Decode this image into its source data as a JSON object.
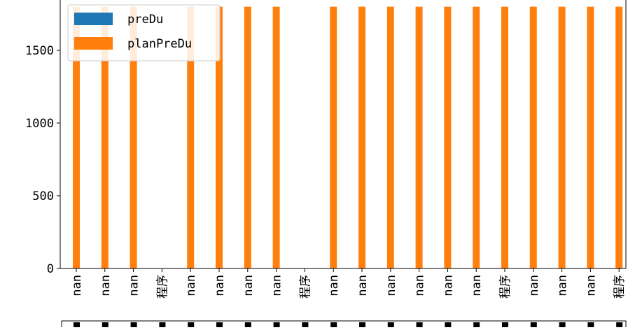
{
  "chart_data": {
    "type": "bar",
    "categories": [
      "nan",
      "nan",
      "nan",
      "程序",
      "nan",
      "nan",
      "nan",
      "nan",
      "程序",
      "nan",
      "nan",
      "nan",
      "nan",
      "nan",
      "nan",
      "程序",
      "nan",
      "nan",
      "nan",
      "程序"
    ],
    "series": [
      {
        "name": "preDu",
        "color": "#1f77b4",
        "values": [
          0,
          0,
          0,
          0,
          0,
          0,
          0,
          0,
          0,
          0,
          0,
          0,
          0,
          0,
          0,
          0,
          0,
          0,
          0,
          0
        ]
      },
      {
        "name": "planPreDu",
        "color": "#ff7f0e",
        "values": [
          1800,
          1800,
          1800,
          0,
          1800,
          1800,
          1800,
          1800,
          0,
          1800,
          1800,
          1800,
          1800,
          1800,
          1800,
          1800,
          1800,
          1800,
          1800,
          1800
        ]
      }
    ],
    "yticks": [
      0,
      500,
      1000,
      1500
    ],
    "ylim": [
      0,
      1800
    ],
    "grid": false,
    "legend": "top-left",
    "xlabel": "",
    "ylabel": "",
    "title": ""
  }
}
